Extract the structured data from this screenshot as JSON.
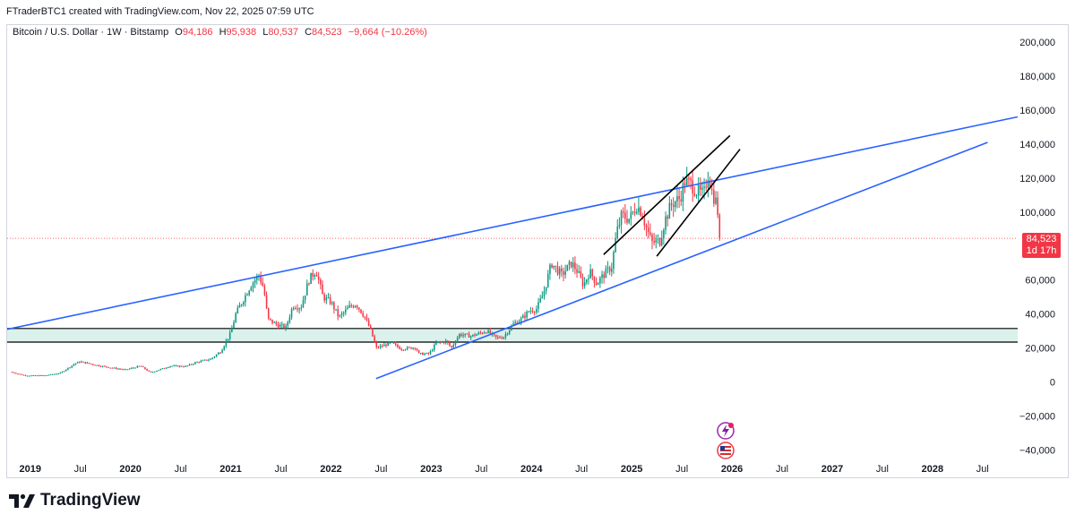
{
  "header": {
    "attribution": "FTraderBTC1 created with TradingView.com, Nov 22, 2025 07:59 UTC"
  },
  "legend": {
    "symbol": "Bitcoin / U.S. Dollar · 1W · Bitstamp",
    "o_label": "O",
    "o_value": "94,186",
    "h_label": "H",
    "h_value": "95,938",
    "l_label": "L",
    "l_value": "80,537",
    "c_label": "C",
    "c_value": "84,523",
    "change": "−9,664 (−10.26%)"
  },
  "price_badge": {
    "price": "84,523",
    "countdown": "1d 17h"
  },
  "brand": {
    "name": "TradingView"
  },
  "colors": {
    "up": "#089981",
    "down": "#f23645",
    "trendline": "#2962ff",
    "zone_fill": "#d6f0ea",
    "channel": "#000000"
  },
  "icons": [
    "tradingview-logo-icon",
    "lightning-event-icon",
    "us-flag-event-icon"
  ],
  "chart_data": {
    "type": "candlestick",
    "symbol": "BTCUSD",
    "interval": "1W",
    "y_axis": {
      "ticks": [
        200000,
        180000,
        160000,
        140000,
        120000,
        100000,
        60000,
        40000,
        20000,
        0,
        -20000,
        -40000
      ],
      "tick_labels": [
        "200,000",
        "180,000",
        "160,000",
        "140,000",
        "120,000",
        "100,000",
        "60,000",
        "40,000",
        "20,000",
        "0",
        "−20,000",
        "−40,000"
      ],
      "range": [
        -45000,
        210000
      ]
    },
    "x_axis": {
      "tick_labels": [
        "2019",
        "Jul",
        "2020",
        "Jul",
        "2021",
        "Jul",
        "2022",
        "Jul",
        "2023",
        "Jul",
        "2024",
        "Jul",
        "2025",
        "Jul",
        "2026",
        "Jul",
        "2027",
        "Jul",
        "2028",
        "Jul"
      ],
      "tick_dates": [
        2019.0,
        2019.5,
        2020.0,
        2020.5,
        2021.0,
        2021.5,
        2022.0,
        2022.5,
        2023.0,
        2023.5,
        2024.0,
        2024.5,
        2025.0,
        2025.5,
        2026.0,
        2026.5,
        2027.0,
        2027.5,
        2028.0,
        2028.5
      ],
      "range": [
        2018.77,
        2028.85
      ]
    },
    "last_price": 84523,
    "price_path": [
      [
        2018.8,
        6000
      ],
      [
        2018.95,
        3800
      ],
      [
        2019.15,
        3900
      ],
      [
        2019.3,
        5300
      ],
      [
        2019.45,
        11000
      ],
      [
        2019.5,
        12000
      ],
      [
        2019.65,
        10000
      ],
      [
        2019.8,
        8500
      ],
      [
        2019.95,
        7200
      ],
      [
        2020.1,
        9500
      ],
      [
        2020.2,
        5500
      ],
      [
        2020.3,
        7500
      ],
      [
        2020.4,
        9500
      ],
      [
        2020.55,
        9200
      ],
      [
        2020.65,
        11500
      ],
      [
        2020.8,
        13500
      ],
      [
        2020.9,
        18000
      ],
      [
        2021.0,
        29000
      ],
      [
        2021.05,
        40000
      ],
      [
        2021.12,
        48000
      ],
      [
        2021.2,
        57000
      ],
      [
        2021.28,
        63000
      ],
      [
        2021.33,
        55000
      ],
      [
        2021.37,
        37000
      ],
      [
        2021.45,
        34000
      ],
      [
        2021.55,
        32000
      ],
      [
        2021.62,
        45000
      ],
      [
        2021.7,
        44000
      ],
      [
        2021.78,
        60000
      ],
      [
        2021.85,
        66000
      ],
      [
        2021.92,
        50000
      ],
      [
        2022.0,
        47000
      ],
      [
        2022.08,
        38000
      ],
      [
        2022.18,
        44000
      ],
      [
        2022.25,
        46000
      ],
      [
        2022.33,
        39000
      ],
      [
        2022.4,
        30000
      ],
      [
        2022.45,
        20000
      ],
      [
        2022.6,
        23000
      ],
      [
        2022.7,
        19500
      ],
      [
        2022.85,
        20500
      ],
      [
        2022.87,
        16500
      ],
      [
        2022.98,
        16600
      ],
      [
        2023.05,
        23000
      ],
      [
        2023.15,
        24000
      ],
      [
        2023.2,
        20000
      ],
      [
        2023.28,
        28000
      ],
      [
        2023.4,
        27000
      ],
      [
        2023.55,
        30000
      ],
      [
        2023.65,
        26000
      ],
      [
        2023.72,
        26500
      ],
      [
        2023.82,
        34000
      ],
      [
        2023.9,
        37000
      ],
      [
        2023.98,
        42000
      ],
      [
        2024.05,
        43000
      ],
      [
        2024.12,
        52000
      ],
      [
        2024.2,
        70000
      ],
      [
        2024.3,
        63000
      ],
      [
        2024.4,
        70000
      ],
      [
        2024.45,
        66000
      ],
      [
        2024.52,
        57000
      ],
      [
        2024.58,
        65000
      ],
      [
        2024.65,
        58000
      ],
      [
        2024.72,
        63000
      ],
      [
        2024.8,
        68000
      ],
      [
        2024.85,
        88000
      ],
      [
        2024.9,
        98000
      ],
      [
        2024.98,
        96000
      ],
      [
        2025.05,
        104000
      ],
      [
        2025.1,
        100000
      ],
      [
        2025.15,
        90000
      ],
      [
        2025.2,
        82000
      ],
      [
        2025.28,
        83000
      ],
      [
        2025.33,
        95000
      ],
      [
        2025.4,
        105000
      ],
      [
        2025.48,
        108000
      ],
      [
        2025.53,
        118000
      ],
      [
        2025.6,
        116000
      ],
      [
        2025.65,
        112000
      ],
      [
        2025.72,
        110000
      ],
      [
        2025.76,
        123000
      ],
      [
        2025.8,
        112000
      ],
      [
        2025.84,
        106000
      ],
      [
        2025.88,
        93000
      ],
      [
        2025.89,
        84523
      ]
    ],
    "overlays": {
      "upper_trendline": [
        [
          2018.77,
          31000
        ],
        [
          2028.85,
          156000
        ]
      ],
      "lower_trendline": [
        [
          2022.45,
          2000
        ],
        [
          2028.55,
          141000
        ]
      ],
      "channel_upper": [
        [
          2024.72,
          75000
        ],
        [
          2025.98,
          145000
        ]
      ],
      "channel_lower": [
        [
          2025.25,
          74000
        ],
        [
          2026.08,
          137000
        ]
      ],
      "support_zone": [
        23500,
        31500
      ]
    },
    "grid": false
  }
}
